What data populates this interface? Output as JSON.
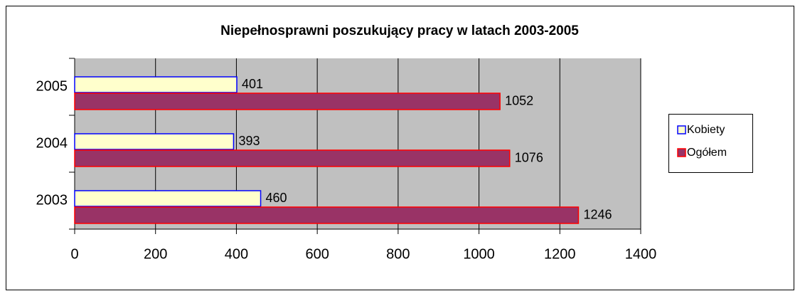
{
  "chart_data": {
    "type": "barh",
    "title": "Niepełnosprawni poszukujący pracy w latach 2003-2005",
    "categories": [
      "2003",
      "2004",
      "2005"
    ],
    "series": [
      {
        "name": "Kobiety",
        "color": "#ffffcc",
        "edge_color": "#0000ff",
        "values": [
          460,
          393,
          401
        ]
      },
      {
        "name": "Ogółem",
        "color": "#993366",
        "edge_color": "#ff0000",
        "values": [
          1246,
          1076,
          1052
        ]
      }
    ],
    "xlim": [
      0,
      1400
    ],
    "xticks": [
      0,
      200,
      400,
      600,
      800,
      1000,
      1200,
      1400
    ],
    "grid": true,
    "legend": "right"
  }
}
